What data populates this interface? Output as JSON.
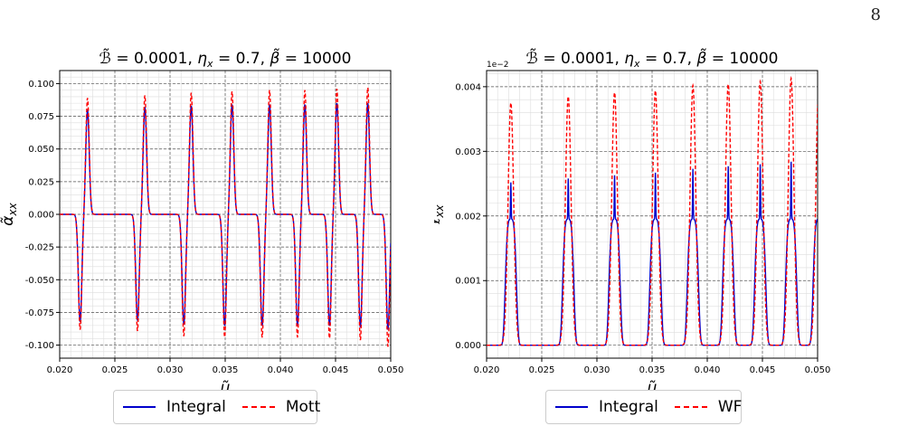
{
  "page_number": "8",
  "colors": {
    "integral": "#0000cc",
    "dashed": "#ff0000",
    "grid_major": "#555555",
    "grid_minor": "#dddddd"
  },
  "chart_data": [
    {
      "type": "line",
      "title": "B̃ = 0.0001,  ηₓ = 0.7,  β̃ = 10000",
      "title_parts": {
        "b_cal": "ℬ̃",
        "b_cal_val": "= 0.0001,",
        "eta": "η",
        "eta_sub": "x",
        "eta_val": "= 0.7,",
        "beta": "β̃",
        "beta_val": "= 10000"
      },
      "xlabel": "μ̃",
      "ylabel": "α̃",
      "ylabel_sub": "xx",
      "xlim": [
        0.02,
        0.05
      ],
      "ylim": [
        -0.11,
        0.11
      ],
      "x_ticks": [
        "0.020",
        "0.025",
        "0.030",
        "0.035",
        "0.040",
        "0.045",
        "0.050"
      ],
      "y_ticks": [
        "-0.100",
        "-0.075",
        "-0.050",
        "-0.025",
        "0.000",
        "0.025",
        "0.050",
        "0.075",
        "0.100"
      ],
      "y_tick_values": [
        -0.1,
        -0.075,
        -0.05,
        -0.025,
        0,
        0.025,
        0.05,
        0.075,
        0.1
      ],
      "x_tick_values": [
        0.02,
        0.025,
        0.03,
        0.035,
        0.04,
        0.045,
        0.05
      ],
      "grid": true,
      "peak_positions": [
        0.0222,
        0.0274,
        0.0316,
        0.0353,
        0.0387,
        0.0419,
        0.0448,
        0.0476,
        0.0501
      ],
      "series": [
        {
          "name": "Integral",
          "style": "solid",
          "color": "#0000cc",
          "min_values": [
            -0.082,
            -0.081,
            -0.084,
            -0.085,
            -0.085,
            -0.085,
            -0.085,
            -0.086,
            -0.088
          ],
          "max_values": [
            0.08,
            0.082,
            0.083,
            0.084,
            0.084,
            0.084,
            0.085,
            0.085,
            0.086
          ]
        },
        {
          "name": "Mott",
          "style": "dashed",
          "color": "#ff0000",
          "min_values": [
            -0.088,
            -0.089,
            -0.093,
            -0.094,
            -0.094,
            -0.094,
            -0.095,
            -0.096,
            -0.101
          ],
          "max_values": [
            0.089,
            0.091,
            0.093,
            0.094,
            0.095,
            0.095,
            0.096,
            0.097,
            0.098
          ]
        }
      ],
      "legend": [
        "Integral",
        "Mott"
      ]
    },
    {
      "type": "line",
      "title_parts": {
        "b_cal": "ℬ̃",
        "b_cal_val": "= 0.0001,",
        "eta": "η",
        "eta_sub": "x",
        "eta_val": "= 0.7,",
        "beta": "β̃",
        "beta_val": "= 10000"
      },
      "xlabel": "μ̃",
      "ylabel": "ℓ̃",
      "ylabel_sub": "xx",
      "offset_text": "1e−2",
      "xlim": [
        0.02,
        0.05
      ],
      "ylim": [
        -0.0002,
        0.00425
      ],
      "x_ticks": [
        "0.020",
        "0.025",
        "0.030",
        "0.035",
        "0.040",
        "0.045",
        "0.050"
      ],
      "y_ticks": [
        "0.000",
        "0.001",
        "0.002",
        "0.003",
        "0.004"
      ],
      "y_tick_values": [
        0,
        0.001,
        0.002,
        0.003,
        0.004
      ],
      "x_tick_values": [
        0.02,
        0.025,
        0.03,
        0.035,
        0.04,
        0.045,
        0.05
      ],
      "grid": true,
      "peak_positions": [
        0.0222,
        0.0274,
        0.0316,
        0.0353,
        0.0387,
        0.0419,
        0.0448,
        0.0476,
        0.0501
      ],
      "series": [
        {
          "name": "Integral",
          "style": "solid",
          "color": "#0000cc",
          "shoulder": 0.00195,
          "max_values": [
            0.00252,
            0.00258,
            0.00263,
            0.00267,
            0.00273,
            0.00277,
            0.0028,
            0.00284,
            0.00265
          ]
        },
        {
          "name": "WF",
          "style": "dashed",
          "color": "#ff0000",
          "max_values": [
            0.00375,
            0.00385,
            0.00391,
            0.00394,
            0.00402,
            0.00404,
            0.00408,
            0.00413,
            0.00402
          ]
        }
      ],
      "legend": [
        "Integral",
        "WF"
      ]
    }
  ]
}
